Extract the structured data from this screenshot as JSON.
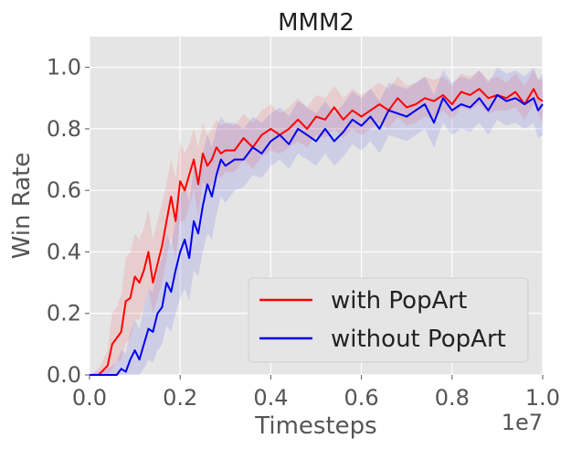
{
  "chart_data": {
    "type": "line",
    "title": "MMM2",
    "xlabel": "Timesteps",
    "ylabel": "Win Rate",
    "x_offset_label": "1e7",
    "xlim": [
      0.0,
      1.0
    ],
    "ylim": [
      0.0,
      1.1
    ],
    "x_ticks": [
      "0.0",
      "0.2",
      "0.4",
      "0.6",
      "0.8",
      "1.0"
    ],
    "y_ticks": [
      "0.0",
      "0.2",
      "0.4",
      "0.6",
      "0.8",
      "1.0"
    ],
    "grid": true,
    "legend_position": "lower-right",
    "colors": {
      "background": "#e5e5e5",
      "grid": "#ffffff",
      "with_popart": "#ff0000",
      "without_popart": "#0000ee"
    },
    "series": [
      {
        "name": "with PopArt",
        "color": "#ff0000",
        "x": [
          0.0,
          0.02,
          0.04,
          0.05,
          0.06,
          0.07,
          0.08,
          0.09,
          0.1,
          0.11,
          0.12,
          0.13,
          0.14,
          0.15,
          0.16,
          0.17,
          0.18,
          0.19,
          0.2,
          0.21,
          0.22,
          0.23,
          0.24,
          0.25,
          0.26,
          0.27,
          0.28,
          0.29,
          0.3,
          0.32,
          0.34,
          0.36,
          0.38,
          0.4,
          0.42,
          0.44,
          0.46,
          0.48,
          0.5,
          0.52,
          0.54,
          0.56,
          0.58,
          0.6,
          0.62,
          0.64,
          0.66,
          0.68,
          0.7,
          0.72,
          0.74,
          0.76,
          0.78,
          0.8,
          0.82,
          0.84,
          0.86,
          0.88,
          0.9,
          0.92,
          0.94,
          0.96,
          0.98,
          0.99,
          1.0
        ],
        "values": [
          0.0,
          0.0,
          0.03,
          0.1,
          0.12,
          0.14,
          0.24,
          0.25,
          0.32,
          0.3,
          0.34,
          0.4,
          0.3,
          0.36,
          0.42,
          0.5,
          0.58,
          0.5,
          0.63,
          0.6,
          0.65,
          0.7,
          0.62,
          0.72,
          0.68,
          0.7,
          0.74,
          0.72,
          0.73,
          0.73,
          0.77,
          0.74,
          0.78,
          0.8,
          0.78,
          0.8,
          0.83,
          0.8,
          0.84,
          0.83,
          0.87,
          0.83,
          0.86,
          0.84,
          0.86,
          0.88,
          0.86,
          0.9,
          0.87,
          0.88,
          0.9,
          0.89,
          0.91,
          0.88,
          0.92,
          0.91,
          0.93,
          0.9,
          0.91,
          0.9,
          0.92,
          0.88,
          0.93,
          0.9,
          0.89
        ],
        "band_lower": [
          0.0,
          0.0,
          0.0,
          0.02,
          0.04,
          0.05,
          0.1,
          0.12,
          0.18,
          0.18,
          0.22,
          0.28,
          0.2,
          0.25,
          0.3,
          0.38,
          0.45,
          0.38,
          0.5,
          0.5,
          0.55,
          0.6,
          0.52,
          0.63,
          0.6,
          0.62,
          0.66,
          0.64,
          0.66,
          0.66,
          0.7,
          0.67,
          0.71,
          0.73,
          0.72,
          0.74,
          0.76,
          0.74,
          0.78,
          0.77,
          0.8,
          0.77,
          0.8,
          0.78,
          0.8,
          0.82,
          0.8,
          0.84,
          0.81,
          0.82,
          0.84,
          0.83,
          0.86,
          0.83,
          0.87,
          0.86,
          0.88,
          0.85,
          0.86,
          0.86,
          0.87,
          0.83,
          0.88,
          0.85,
          0.82
        ],
        "band_upper": [
          0.0,
          0.02,
          0.08,
          0.2,
          0.22,
          0.26,
          0.38,
          0.4,
          0.46,
          0.44,
          0.48,
          0.54,
          0.44,
          0.5,
          0.56,
          0.62,
          0.7,
          0.64,
          0.76,
          0.72,
          0.75,
          0.8,
          0.74,
          0.82,
          0.78,
          0.8,
          0.83,
          0.81,
          0.82,
          0.81,
          0.85,
          0.82,
          0.86,
          0.88,
          0.85,
          0.87,
          0.9,
          0.87,
          0.91,
          0.9,
          0.94,
          0.9,
          0.93,
          0.91,
          0.93,
          0.95,
          0.93,
          0.97,
          0.94,
          0.95,
          0.97,
          0.96,
          0.97,
          0.94,
          0.98,
          0.97,
          0.99,
          0.96,
          0.97,
          0.95,
          0.98,
          0.94,
          0.99,
          0.96,
          0.96
        ]
      },
      {
        "name": "without PopArt",
        "color": "#0000ee",
        "x": [
          0.0,
          0.04,
          0.06,
          0.07,
          0.08,
          0.09,
          0.1,
          0.11,
          0.12,
          0.13,
          0.14,
          0.15,
          0.16,
          0.17,
          0.18,
          0.19,
          0.2,
          0.21,
          0.22,
          0.23,
          0.24,
          0.25,
          0.26,
          0.27,
          0.28,
          0.29,
          0.3,
          0.32,
          0.34,
          0.36,
          0.38,
          0.4,
          0.42,
          0.44,
          0.46,
          0.48,
          0.5,
          0.52,
          0.54,
          0.56,
          0.58,
          0.6,
          0.62,
          0.64,
          0.66,
          0.68,
          0.7,
          0.72,
          0.74,
          0.76,
          0.78,
          0.8,
          0.82,
          0.84,
          0.86,
          0.88,
          0.9,
          0.92,
          0.94,
          0.96,
          0.98,
          0.99,
          1.0
        ],
        "values": [
          0.0,
          0.0,
          0.0,
          0.02,
          0.01,
          0.05,
          0.08,
          0.05,
          0.1,
          0.15,
          0.14,
          0.2,
          0.22,
          0.3,
          0.27,
          0.34,
          0.4,
          0.44,
          0.38,
          0.5,
          0.46,
          0.55,
          0.62,
          0.58,
          0.65,
          0.7,
          0.68,
          0.7,
          0.7,
          0.74,
          0.72,
          0.76,
          0.78,
          0.75,
          0.8,
          0.78,
          0.76,
          0.8,
          0.76,
          0.79,
          0.83,
          0.81,
          0.84,
          0.8,
          0.86,
          0.85,
          0.84,
          0.86,
          0.88,
          0.82,
          0.9,
          0.86,
          0.88,
          0.87,
          0.9,
          0.86,
          0.91,
          0.89,
          0.9,
          0.88,
          0.9,
          0.86,
          0.88
        ],
        "band_lower": [
          0.0,
          0.0,
          0.0,
          0.0,
          0.0,
          0.0,
          0.0,
          0.0,
          0.02,
          0.05,
          0.04,
          0.08,
          0.1,
          0.16,
          0.14,
          0.2,
          0.25,
          0.28,
          0.24,
          0.34,
          0.32,
          0.4,
          0.46,
          0.44,
          0.52,
          0.58,
          0.56,
          0.6,
          0.61,
          0.65,
          0.64,
          0.68,
          0.7,
          0.67,
          0.72,
          0.7,
          0.68,
          0.72,
          0.68,
          0.71,
          0.75,
          0.73,
          0.76,
          0.72,
          0.78,
          0.77,
          0.76,
          0.78,
          0.8,
          0.74,
          0.82,
          0.78,
          0.8,
          0.79,
          0.82,
          0.78,
          0.83,
          0.81,
          0.82,
          0.8,
          0.82,
          0.77,
          0.78
        ],
        "band_upper": [
          0.0,
          0.02,
          0.04,
          0.08,
          0.07,
          0.14,
          0.18,
          0.15,
          0.22,
          0.28,
          0.27,
          0.34,
          0.38,
          0.46,
          0.42,
          0.5,
          0.58,
          0.62,
          0.56,
          0.68,
          0.62,
          0.72,
          0.78,
          0.74,
          0.8,
          0.84,
          0.82,
          0.82,
          0.8,
          0.84,
          0.82,
          0.85,
          0.87,
          0.84,
          0.89,
          0.87,
          0.85,
          0.89,
          0.85,
          0.88,
          0.92,
          0.9,
          0.93,
          0.89,
          0.95,
          0.94,
          0.93,
          0.95,
          0.97,
          0.91,
          0.99,
          0.95,
          0.97,
          0.96,
          0.99,
          0.95,
          1.0,
          0.98,
          0.99,
          0.97,
          1.0,
          0.96,
          0.98
        ]
      }
    ]
  }
}
